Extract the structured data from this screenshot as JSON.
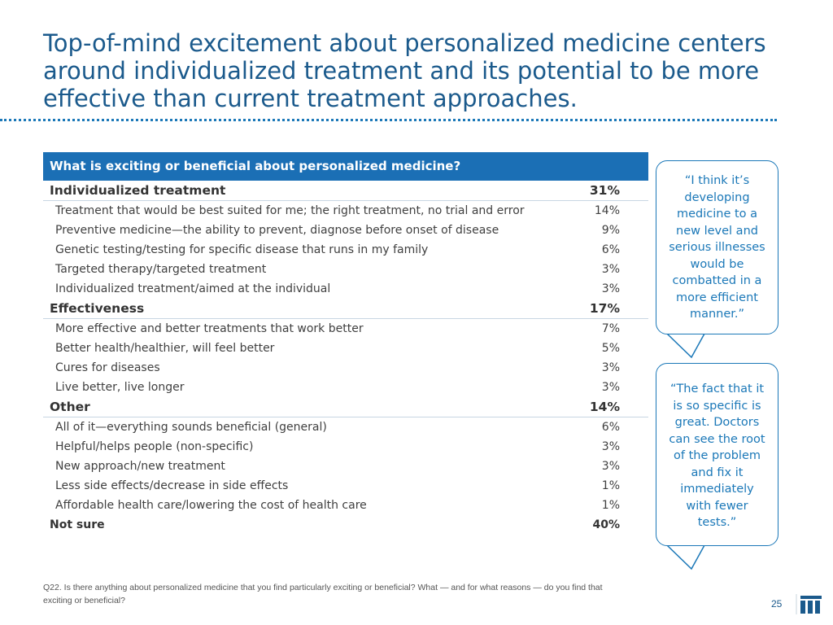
{
  "title_lines": [
    "Top-of-mind excitement about personalized medicine centers",
    "around individualized treatment and its potential to be more",
    "effective than current treatment approaches."
  ],
  "table": {
    "header": "What is exciting or beneficial about personalized medicine?",
    "categories": [
      {
        "label": "Individualized treatment",
        "value": "31%",
        "items": [
          {
            "label": "Treatment that would be best suited for me; the right treatment, no trial and error",
            "value": "14%"
          },
          {
            "label": "Preventive medicine—the ability to prevent, diagnose before onset of disease",
            "value": "9%"
          },
          {
            "label": "Genetic testing/testing for specific disease that runs in my family",
            "value": "6%"
          },
          {
            "label": "Targeted therapy/targeted treatment",
            "value": "3%"
          },
          {
            "label": "Individualized treatment/aimed at the individual",
            "value": "3%"
          }
        ]
      },
      {
        "label": "Effectiveness",
        "value": "17%",
        "items": [
          {
            "label": "More effective and better treatments that work better",
            "value": "7%"
          },
          {
            "label": "Better health/healthier, will feel better",
            "value": "5%"
          },
          {
            "label": "Cures for diseases",
            "value": "3%"
          },
          {
            "label": "Live better, live longer",
            "value": "3%"
          }
        ]
      },
      {
        "label": "Other",
        "value": "14%",
        "items": [
          {
            "label": "All of it—everything sounds beneficial (general)",
            "value": "6%"
          },
          {
            "label": "Helpful/helps people (non-specific)",
            "value": "3%"
          },
          {
            "label": "New approach/new treatment",
            "value": "3%"
          },
          {
            "label": "Less side effects/decrease in side effects",
            "value": "1%"
          },
          {
            "label": "Affordable health care/lowering the cost of health care",
            "value": "1%"
          }
        ]
      }
    ],
    "not_sure": {
      "label": "Not sure",
      "value": "40%"
    }
  },
  "quotes": [
    {
      "lines": [
        "“I think it’s",
        "developing",
        "medicine to a",
        "new level and",
        "serious illnesses",
        "would be",
        "combatted in a",
        "more efficient",
        "manner.”"
      ]
    },
    {
      "lines": [
        "“The fact that it",
        "is so specific is",
        "great. Doctors",
        "can see the root",
        "of the problem",
        "and fix it",
        "immediately",
        "with fewer",
        "tests.”"
      ]
    }
  ],
  "footnote_lines": [
    "Q22. Is there anything about personalized medicine that you find particularly exciting or beneficial? What — and for what reasons — do you find that",
    "exciting or beneficial?"
  ],
  "page_number": "25",
  "colors": {
    "accent": "#1b6fb5",
    "title": "#1b5a8c",
    "quote": "#1b78b8"
  }
}
